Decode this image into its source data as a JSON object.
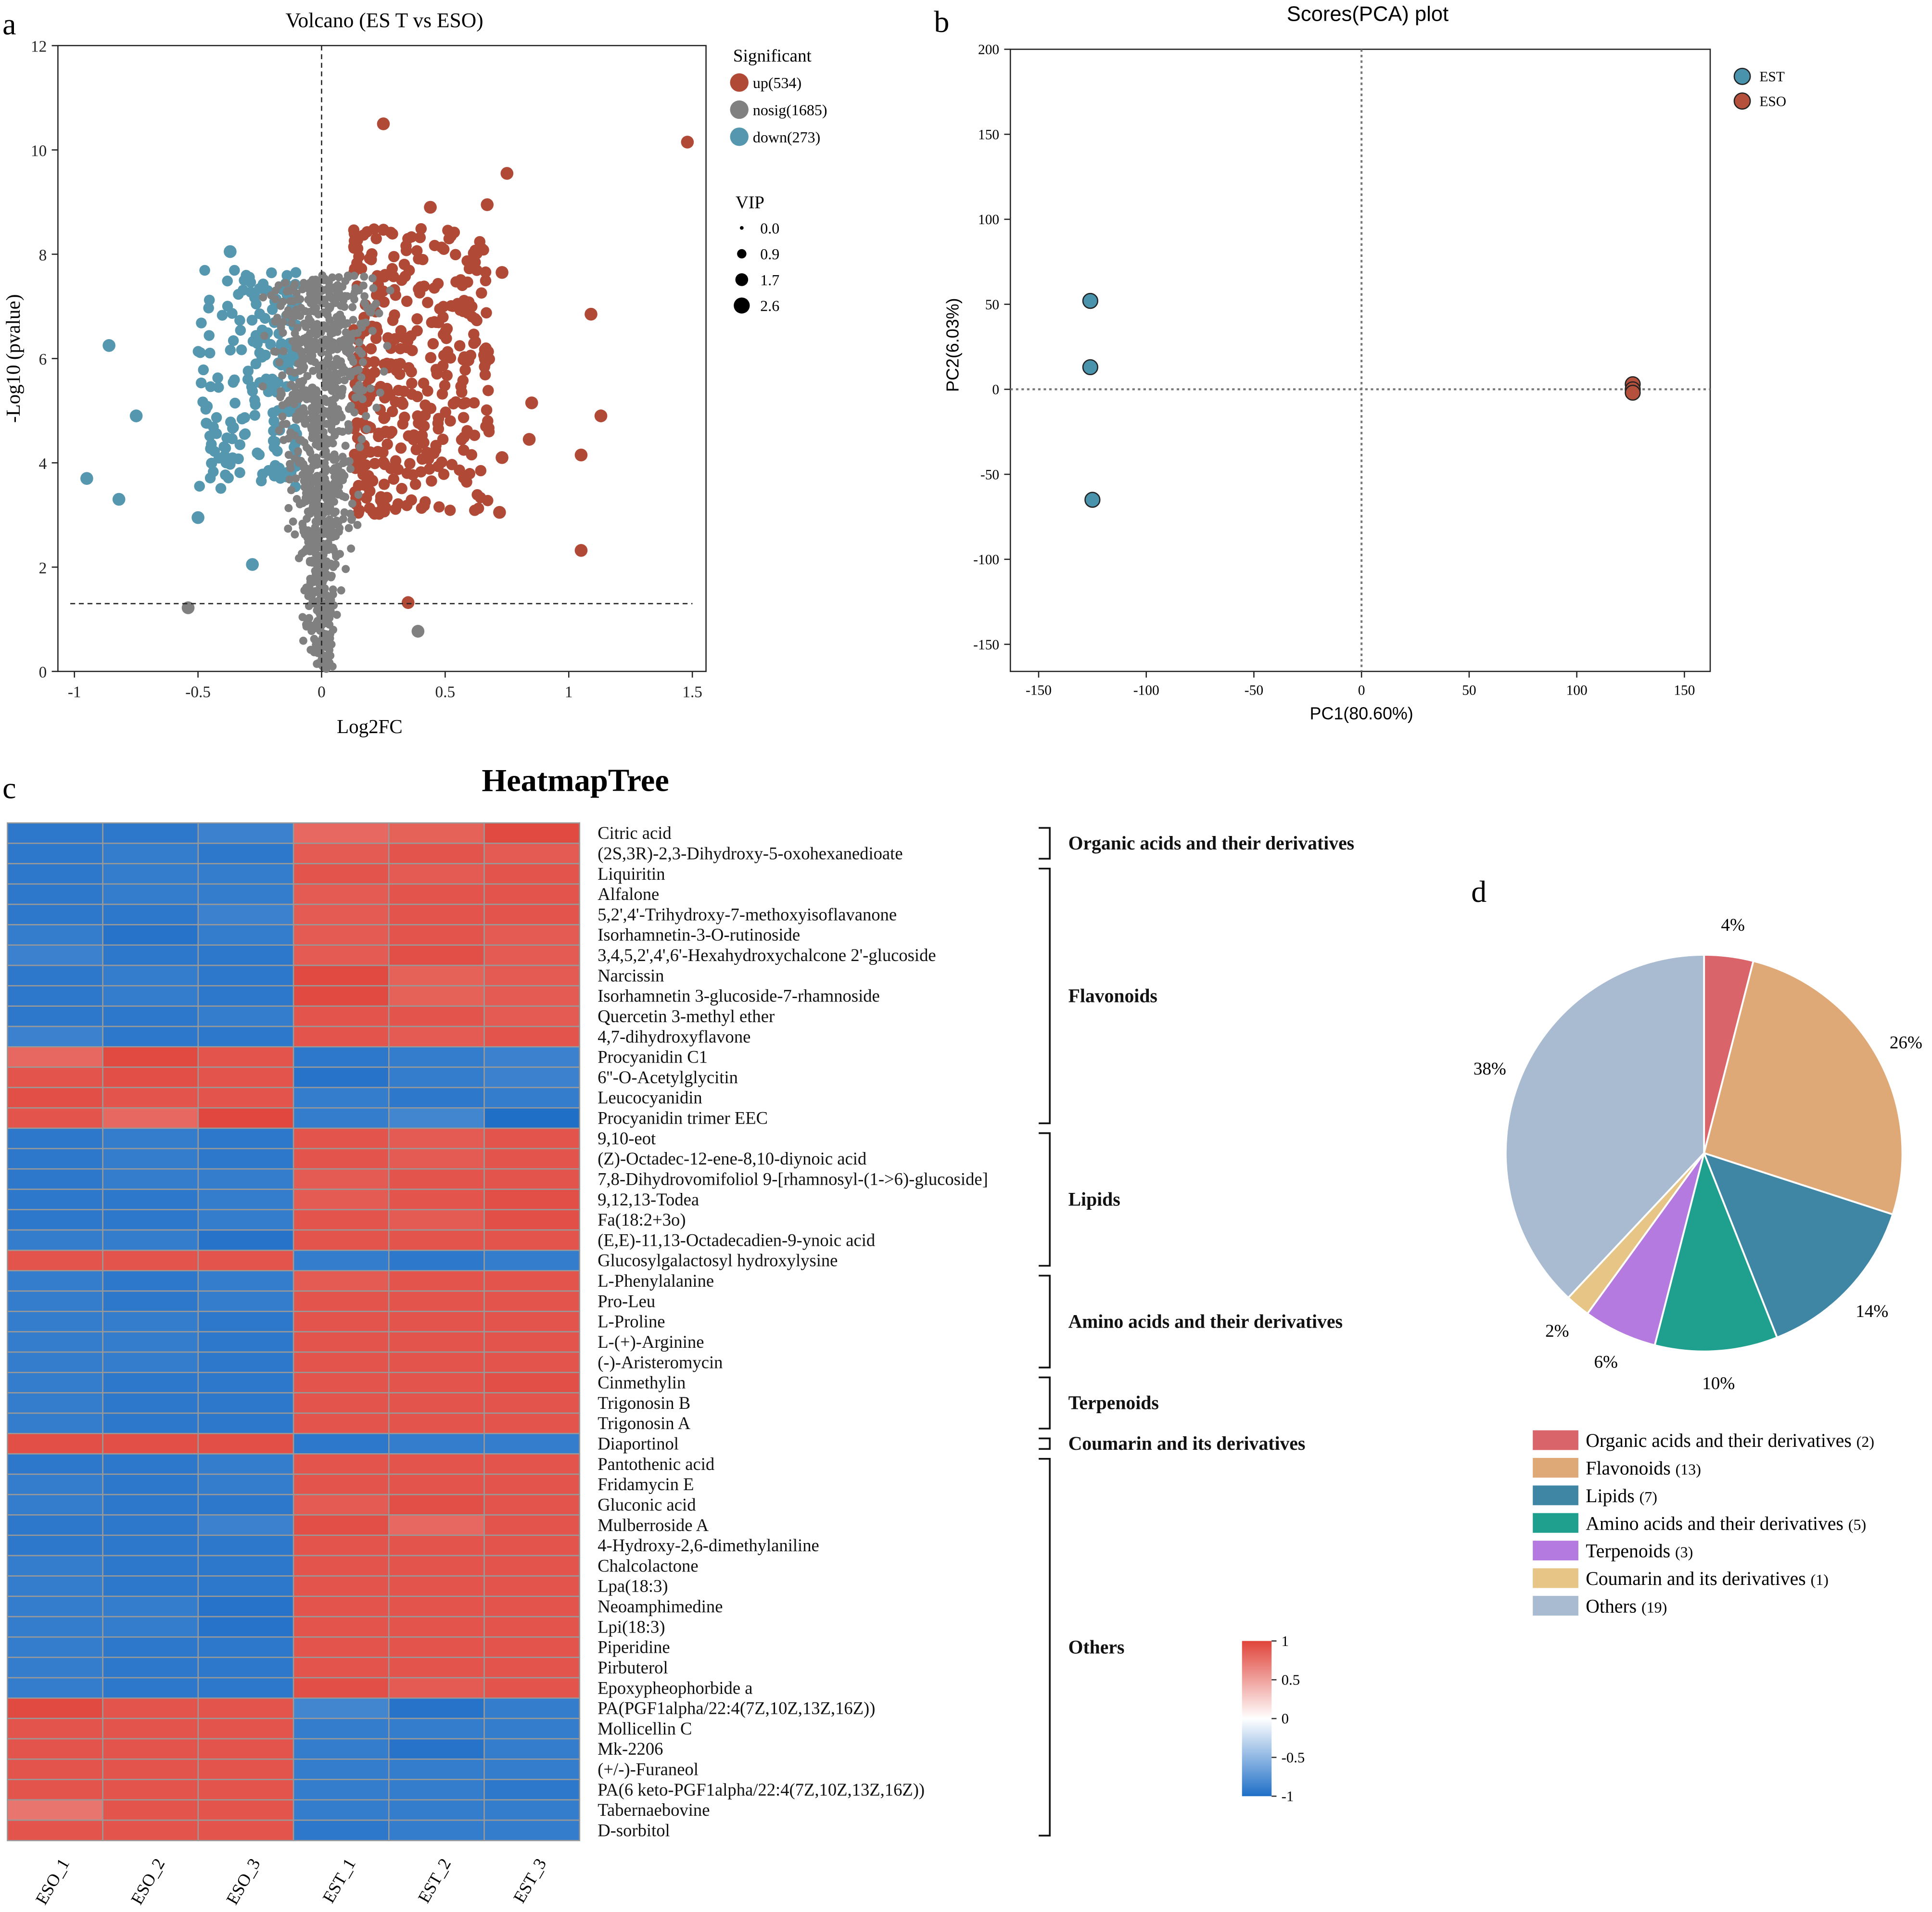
{
  "panels": {
    "a": "a",
    "b": "b",
    "c": "c",
    "d": "d"
  },
  "chart_data": [
    {
      "type": "scatter",
      "title": "Volcano (ES T vs ESO)",
      "xlabel": "Log2FC",
      "ylabel": "-Log10 (pvalue)",
      "xlim": [
        -1.05,
        1.55
      ],
      "ylim": [
        0,
        12
      ],
      "xticks": [
        "-1",
        "-0.5",
        "0",
        "0.5",
        "1",
        "1.5"
      ],
      "yticks": [
        "0",
        "2",
        "4",
        "6",
        "8",
        "10",
        "12"
      ],
      "threshold_lines": {
        "log2fc": 0,
        "neg_log10_pvalue": 1.3
      },
      "legend": {
        "title": "Significant",
        "entries": [
          {
            "label": "up(534)",
            "color": "#b04a37"
          },
          {
            "label": "nosig(1685)",
            "color": "#808080"
          },
          {
            "label": "down(273)",
            "color": "#5497ae"
          }
        ]
      },
      "size_legend": {
        "title": "VIP",
        "entries": [
          "0.0",
          "0.9",
          "1.7",
          "2.6"
        ]
      },
      "series": [
        {
          "name": "up",
          "count": 534,
          "color": "#b04a37",
          "points": [
            [
              1.48,
              10.15
            ],
            [
              1.09,
              6.85
            ],
            [
              1.13,
              4.9
            ],
            [
              1.05,
              4.15
            ],
            [
              1.05,
              2.32
            ],
            [
              0.75,
              9.55
            ],
            [
              0.67,
              8.95
            ],
            [
              0.44,
              8.9
            ],
            [
              0.25,
              10.5
            ],
            [
              0.35,
              1.32
            ],
            [
              0.85,
              5.15
            ],
            [
              0.84,
              4.45
            ],
            [
              0.72,
              3.05
            ],
            [
              0.73,
              7.65
            ],
            [
              0.73,
              4.1
            ]
          ]
        },
        {
          "name": "nosig",
          "count": 1685,
          "color": "#808080",
          "points": [
            [
              -0.54,
              1.22
            ],
            [
              0.39,
              0.77
            ]
          ]
        },
        {
          "name": "down",
          "count": 273,
          "color": "#5497ae",
          "points": [
            [
              -0.95,
              3.7
            ],
            [
              -0.82,
              3.3
            ],
            [
              -0.86,
              6.25
            ],
            [
              -0.5,
              2.95
            ],
            [
              -0.75,
              4.9
            ],
            [
              -0.28,
              2.05
            ],
            [
              -0.37,
              8.05
            ]
          ]
        }
      ]
    },
    {
      "type": "scatter",
      "title": "Scores(PCA) plot",
      "xlabel": "PC1(80.60%)",
      "ylabel": "PC2(6.03%)",
      "xlim": [
        -163,
        163
      ],
      "ylim": [
        -166,
        200
      ],
      "xticks": [
        "-150",
        "-100",
        "-50",
        "0",
        "50",
        "100",
        "150"
      ],
      "yticks": [
        "-150",
        "-100",
        "-50",
        "0",
        "50",
        "100",
        "150",
        "200"
      ],
      "series": [
        {
          "name": "EST",
          "color": "#4a93ad",
          "points": [
            [
              -126,
              52
            ],
            [
              -126,
              13
            ],
            [
              -125,
              -65
            ]
          ]
        },
        {
          "name": "ESO",
          "color": "#b5503c",
          "points": [
            [
              126,
              3
            ],
            [
              126,
              0
            ],
            [
              126,
              -2
            ]
          ]
        }
      ]
    },
    {
      "type": "heatmap",
      "title": "HeatmapTree",
      "columns": [
        "ESO_1",
        "ESO_2",
        "ESO_3",
        "EST_1",
        "EST_2",
        "EST_3"
      ],
      "colorbar": {
        "ticks": [
          "1",
          "0.5",
          "0",
          "-0.5",
          "-1"
        ],
        "low": "#1f6fc7",
        "mid": "#ffffff",
        "high": "#e0443a"
      },
      "groups": [
        {
          "label": "Organic acids and their derivatives",
          "rows": [
            0,
            1
          ]
        },
        {
          "label": "Flavonoids",
          "rows": [
            2,
            14
          ]
        },
        {
          "label": "Lipids",
          "rows": [
            15,
            21
          ]
        },
        {
          "label": "Amino acids and their derivatives",
          "rows": [
            22,
            26
          ]
        },
        {
          "label": "Terpenoids",
          "rows": [
            27,
            29
          ]
        },
        {
          "label": "Coumarin and its derivatives",
          "rows": [
            30,
            30
          ]
        },
        {
          "label": "Others",
          "rows": [
            31,
            49
          ]
        }
      ],
      "rows": [
        {
          "name": "Citric acid",
          "values": [
            -0.9,
            -0.9,
            -0.8,
            0.7,
            0.75,
            0.95
          ]
        },
        {
          "name": "(2S,3R)-2,3-Dihydroxy-5-oxohexanedioate",
          "values": [
            -0.9,
            -0.85,
            -0.9,
            0.8,
            0.85,
            0.8
          ]
        },
        {
          "name": "Liquiritin",
          "values": [
            -0.9,
            -0.85,
            -0.85,
            0.85,
            0.8,
            0.85
          ]
        },
        {
          "name": "Alfalone",
          "values": [
            -0.9,
            -0.85,
            -0.85,
            0.8,
            0.85,
            0.85
          ]
        },
        {
          "name": "5,2',4'-Trihydroxy-7-methoxyisoflavanone",
          "values": [
            -0.9,
            -0.9,
            -0.8,
            0.8,
            0.85,
            0.85
          ]
        },
        {
          "name": "Isorhamnetin-3-O-rutinoside",
          "values": [
            -0.85,
            -0.95,
            -0.85,
            0.8,
            0.85,
            0.8
          ]
        },
        {
          "name": "3,4,5,2',4',6'-Hexahydroxychalcone 2'-glucoside",
          "values": [
            -0.8,
            -0.9,
            -0.9,
            0.8,
            0.9,
            0.8
          ]
        },
        {
          "name": "Narcissin",
          "values": [
            -0.9,
            -0.85,
            -0.9,
            0.95,
            0.75,
            0.8
          ]
        },
        {
          "name": "Isorhamnetin 3-glucoside-7-rhamnoside",
          "values": [
            -0.9,
            -0.85,
            -0.9,
            0.95,
            0.75,
            0.8
          ]
        },
        {
          "name": "Quercetin 3-methyl ether",
          "values": [
            -0.9,
            -0.9,
            -0.85,
            0.85,
            0.85,
            0.8
          ]
        },
        {
          "name": "4,7-dihydroxyflavone",
          "values": [
            -0.8,
            -0.9,
            -0.9,
            0.85,
            0.8,
            0.85
          ]
        },
        {
          "name": "Procyanidin C1",
          "values": [
            0.7,
            0.95,
            0.85,
            -0.9,
            -0.85,
            -0.8
          ]
        },
        {
          "name": "6''-O-Acetylglycitin",
          "values": [
            0.85,
            0.9,
            0.85,
            -0.95,
            -0.85,
            -0.8
          ]
        },
        {
          "name": "Leucocyanidin",
          "values": [
            0.9,
            0.85,
            0.85,
            -0.85,
            -0.9,
            -0.85
          ]
        },
        {
          "name": "Procyanidin trimer EEC",
          "values": [
            0.85,
            0.7,
            0.97,
            -0.85,
            -0.75,
            -1.0
          ]
        },
        {
          "name": "9,10-eot",
          "values": [
            -0.9,
            -0.85,
            -0.9,
            0.85,
            0.8,
            0.85
          ]
        },
        {
          "name": "(Z)-Octadec-12-ene-8,10-diynoic acid",
          "values": [
            -0.9,
            -0.85,
            -0.9,
            0.85,
            0.8,
            0.85
          ]
        },
        {
          "name": "7,8-Dihydrovomifoliol 9-[rhamnosyl-(1->6)-glucoside]",
          "values": [
            -0.9,
            -0.85,
            -0.85,
            0.8,
            0.85,
            0.85
          ]
        },
        {
          "name": "9,12,13-Todea",
          "values": [
            -0.9,
            -0.9,
            -0.85,
            0.8,
            0.85,
            0.9
          ]
        },
        {
          "name": "Fa(18:2+3o)",
          "values": [
            -0.9,
            -0.9,
            -0.85,
            0.85,
            0.8,
            0.9
          ]
        },
        {
          "name": "(E,E)-11,13-Octadecadien-9-ynoic acid",
          "values": [
            -0.85,
            -0.85,
            -0.95,
            0.85,
            0.85,
            0.85
          ]
        },
        {
          "name": "Glucosylgalactosyl hydroxylysine",
          "values": [
            0.85,
            0.85,
            0.85,
            -0.85,
            -0.9,
            -0.85
          ]
        },
        {
          "name": "L-Phenylalanine",
          "values": [
            -0.85,
            -0.9,
            -0.85,
            0.8,
            0.85,
            0.85
          ]
        },
        {
          "name": "Pro-Leu",
          "values": [
            -0.85,
            -0.9,
            -0.85,
            0.85,
            0.85,
            0.85
          ]
        },
        {
          "name": "L-Proline",
          "values": [
            -0.85,
            -0.85,
            -0.9,
            0.85,
            0.85,
            0.85
          ]
        },
        {
          "name": "L-(+)-Arginine",
          "values": [
            -0.85,
            -0.85,
            -0.9,
            0.85,
            0.85,
            0.85
          ]
        },
        {
          "name": "(-)-Aristeromycin",
          "values": [
            -0.85,
            -0.85,
            -0.9,
            0.85,
            0.85,
            0.85
          ]
        },
        {
          "name": "Cinmethylin",
          "values": [
            -0.85,
            -0.9,
            -0.9,
            0.85,
            0.85,
            0.9
          ]
        },
        {
          "name": "Trigonosin B",
          "values": [
            -0.85,
            -0.9,
            -0.9,
            0.85,
            0.85,
            0.85
          ]
        },
        {
          "name": "Trigonosin A",
          "values": [
            -0.85,
            -0.9,
            -0.9,
            0.85,
            0.85,
            0.85
          ]
        },
        {
          "name": "Diaportinol",
          "values": [
            0.9,
            0.9,
            0.9,
            -0.9,
            -0.85,
            -0.85
          ]
        },
        {
          "name": "Pantothenic acid",
          "values": [
            -0.9,
            -0.9,
            -0.85,
            0.85,
            0.85,
            0.85
          ]
        },
        {
          "name": "Fridamycin E",
          "values": [
            -0.85,
            -0.9,
            -0.85,
            0.85,
            0.85,
            0.85
          ]
        },
        {
          "name": "Gluconic acid",
          "values": [
            -0.85,
            -0.9,
            -0.9,
            0.8,
            0.9,
            0.85
          ]
        },
        {
          "name": "Mulberroside A",
          "values": [
            -0.9,
            -0.9,
            -0.8,
            0.9,
            0.7,
            0.85
          ]
        },
        {
          "name": "4-Hydroxy-2,6-dimethylaniline",
          "values": [
            -0.9,
            -0.9,
            -0.9,
            0.85,
            0.85,
            0.85
          ]
        },
        {
          "name": "Chalcolactone",
          "values": [
            -0.85,
            -0.9,
            -0.9,
            0.85,
            0.85,
            0.85
          ]
        },
        {
          "name": "Lpa(18:3)",
          "values": [
            -0.85,
            -0.9,
            -0.9,
            0.85,
            0.85,
            0.85
          ]
        },
        {
          "name": "Neoamphimedine",
          "values": [
            -0.85,
            -0.85,
            -0.95,
            0.85,
            0.85,
            0.85
          ]
        },
        {
          "name": "Lpi(18:3)",
          "values": [
            -0.85,
            -0.85,
            -0.95,
            0.85,
            0.85,
            0.85
          ]
        },
        {
          "name": "Piperidine",
          "values": [
            -0.85,
            -0.9,
            -0.9,
            0.85,
            0.85,
            0.85
          ]
        },
        {
          "name": "Pirbuterol",
          "values": [
            -0.85,
            -0.9,
            -0.9,
            0.85,
            0.85,
            0.85
          ]
        },
        {
          "name": "Epoxypheophorbide a",
          "values": [
            -0.85,
            -0.9,
            -0.9,
            0.9,
            0.8,
            0.85
          ]
        },
        {
          "name": "PA(PGF1alpha/22:4(7Z,10Z,13Z,16Z))",
          "values": [
            0.95,
            0.85,
            0.85,
            -0.75,
            -0.95,
            -0.85
          ]
        },
        {
          "name": "Mollicellin C",
          "values": [
            0.85,
            0.85,
            0.85,
            -0.85,
            -0.85,
            -0.85
          ]
        },
        {
          "name": "Mk-2206",
          "values": [
            0.85,
            0.85,
            0.85,
            -0.85,
            -0.95,
            -0.85
          ]
        },
        {
          "name": "(+/-)-Furaneol",
          "values": [
            0.85,
            0.85,
            0.85,
            -0.85,
            -0.85,
            -0.85
          ]
        },
        {
          "name": "PA(6 keto-PGF1alpha/22:4(7Z,10Z,13Z,16Z))",
          "values": [
            0.85,
            0.85,
            0.85,
            -0.85,
            -0.85,
            -0.9
          ]
        },
        {
          "name": "Tabernaebovine",
          "values": [
            0.6,
            0.85,
            0.85,
            -0.85,
            -0.85,
            -0.85
          ]
        },
        {
          "name": "D-sorbitol",
          "values": [
            0.85,
            0.85,
            0.85,
            -0.9,
            -0.85,
            -0.85
          ]
        }
      ]
    },
    {
      "type": "pie",
      "slices": [
        {
          "label": "Organic acids and their derivatives",
          "count": "(2)",
          "percent": 4,
          "percent_label": "4%",
          "color": "#d9646a"
        },
        {
          "label": "Flavonoids",
          "count": "(13)",
          "percent": 26,
          "percent_label": "26%",
          "color": "#dfa877"
        },
        {
          "label": "Lipids",
          "count": "(7)",
          "percent": 14,
          "percent_label": "14%",
          "color": "#3f86a5"
        },
        {
          "label": "Amino acids and their derivatives",
          "count": "(5)",
          "percent": 10,
          "percent_label": "10%",
          "color": "#1fa08e"
        },
        {
          "label": "Terpenoids",
          "count": "(3)",
          "percent": 6,
          "percent_label": "6%",
          "color": "#b57ae0"
        },
        {
          "label": "Coumarin and its derivatives",
          "count": "(1)",
          "percent": 2,
          "percent_label": "2%",
          "color": "#e6c586"
        },
        {
          "label": "Others",
          "count": "(19)",
          "percent": 38,
          "percent_label": "38%",
          "color": "#a9bbd0"
        }
      ],
      "legend": "bottom"
    }
  ]
}
